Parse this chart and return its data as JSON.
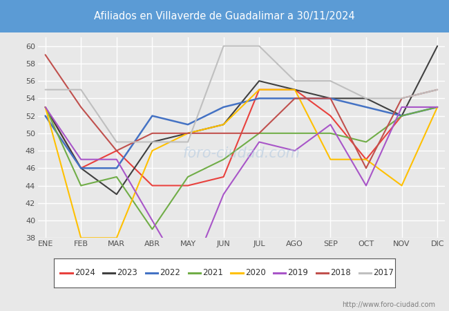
{
  "title": "Afiliados en Villaverde de Guadalimar a 30/11/2024",
  "title_bg_color": "#5b9bd5",
  "title_text_color": "white",
  "ylim": [
    38,
    61
  ],
  "yticks": [
    38,
    40,
    42,
    44,
    46,
    48,
    50,
    52,
    54,
    56,
    58,
    60
  ],
  "months": [
    "ENE",
    "FEB",
    "MAR",
    "ABR",
    "MAY",
    "JUN",
    "JUL",
    "AGO",
    "SEP",
    "OCT",
    "NOV",
    "DIC"
  ],
  "url": "http://www.foro-ciudad.com",
  "series": {
    "2024": {
      "color": "#e8413d",
      "linewidth": 1.5,
      "values": [
        53,
        46,
        48,
        44,
        44,
        45,
        55,
        55,
        52,
        47,
        52,
        null
      ]
    },
    "2023": {
      "color": "#404040",
      "linewidth": 1.5,
      "values": [
        53,
        46,
        43,
        49,
        50,
        51,
        56,
        55,
        54,
        54,
        52,
        60
      ]
    },
    "2022": {
      "color": "#4472c4",
      "linewidth": 1.8,
      "values": [
        52,
        46,
        46,
        52,
        51,
        53,
        54,
        54,
        54,
        53,
        52,
        53
      ]
    },
    "2021": {
      "color": "#70ad47",
      "linewidth": 1.5,
      "values": [
        53,
        44,
        45,
        39,
        45,
        47,
        50,
        50,
        50,
        49,
        52,
        53
      ]
    },
    "2020": {
      "color": "#ffc000",
      "linewidth": 1.5,
      "values": [
        53,
        38,
        38,
        48,
        50,
        51,
        55,
        55,
        47,
        47,
        44,
        53
      ]
    },
    "2019": {
      "color": "#a855c8",
      "linewidth": 1.5,
      "values": [
        53,
        47,
        47,
        40,
        33,
        43,
        49,
        48,
        51,
        44,
        53,
        53
      ]
    },
    "2018": {
      "color": "#c0504d",
      "linewidth": 1.5,
      "values": [
        59,
        53,
        48,
        50,
        50,
        50,
        50,
        54,
        54,
        46,
        54,
        55
      ]
    },
    "2017": {
      "color": "#bfbfbf",
      "linewidth": 1.5,
      "values": [
        55,
        55,
        49,
        49,
        49,
        60,
        60,
        56,
        56,
        54,
        54,
        55
      ]
    }
  },
  "bg_color": "#e8e8e8",
  "plot_bg_color": "#e8e8e8",
  "grid_color": "white",
  "legend_years": [
    "2024",
    "2023",
    "2022",
    "2021",
    "2020",
    "2019",
    "2018",
    "2017"
  ]
}
